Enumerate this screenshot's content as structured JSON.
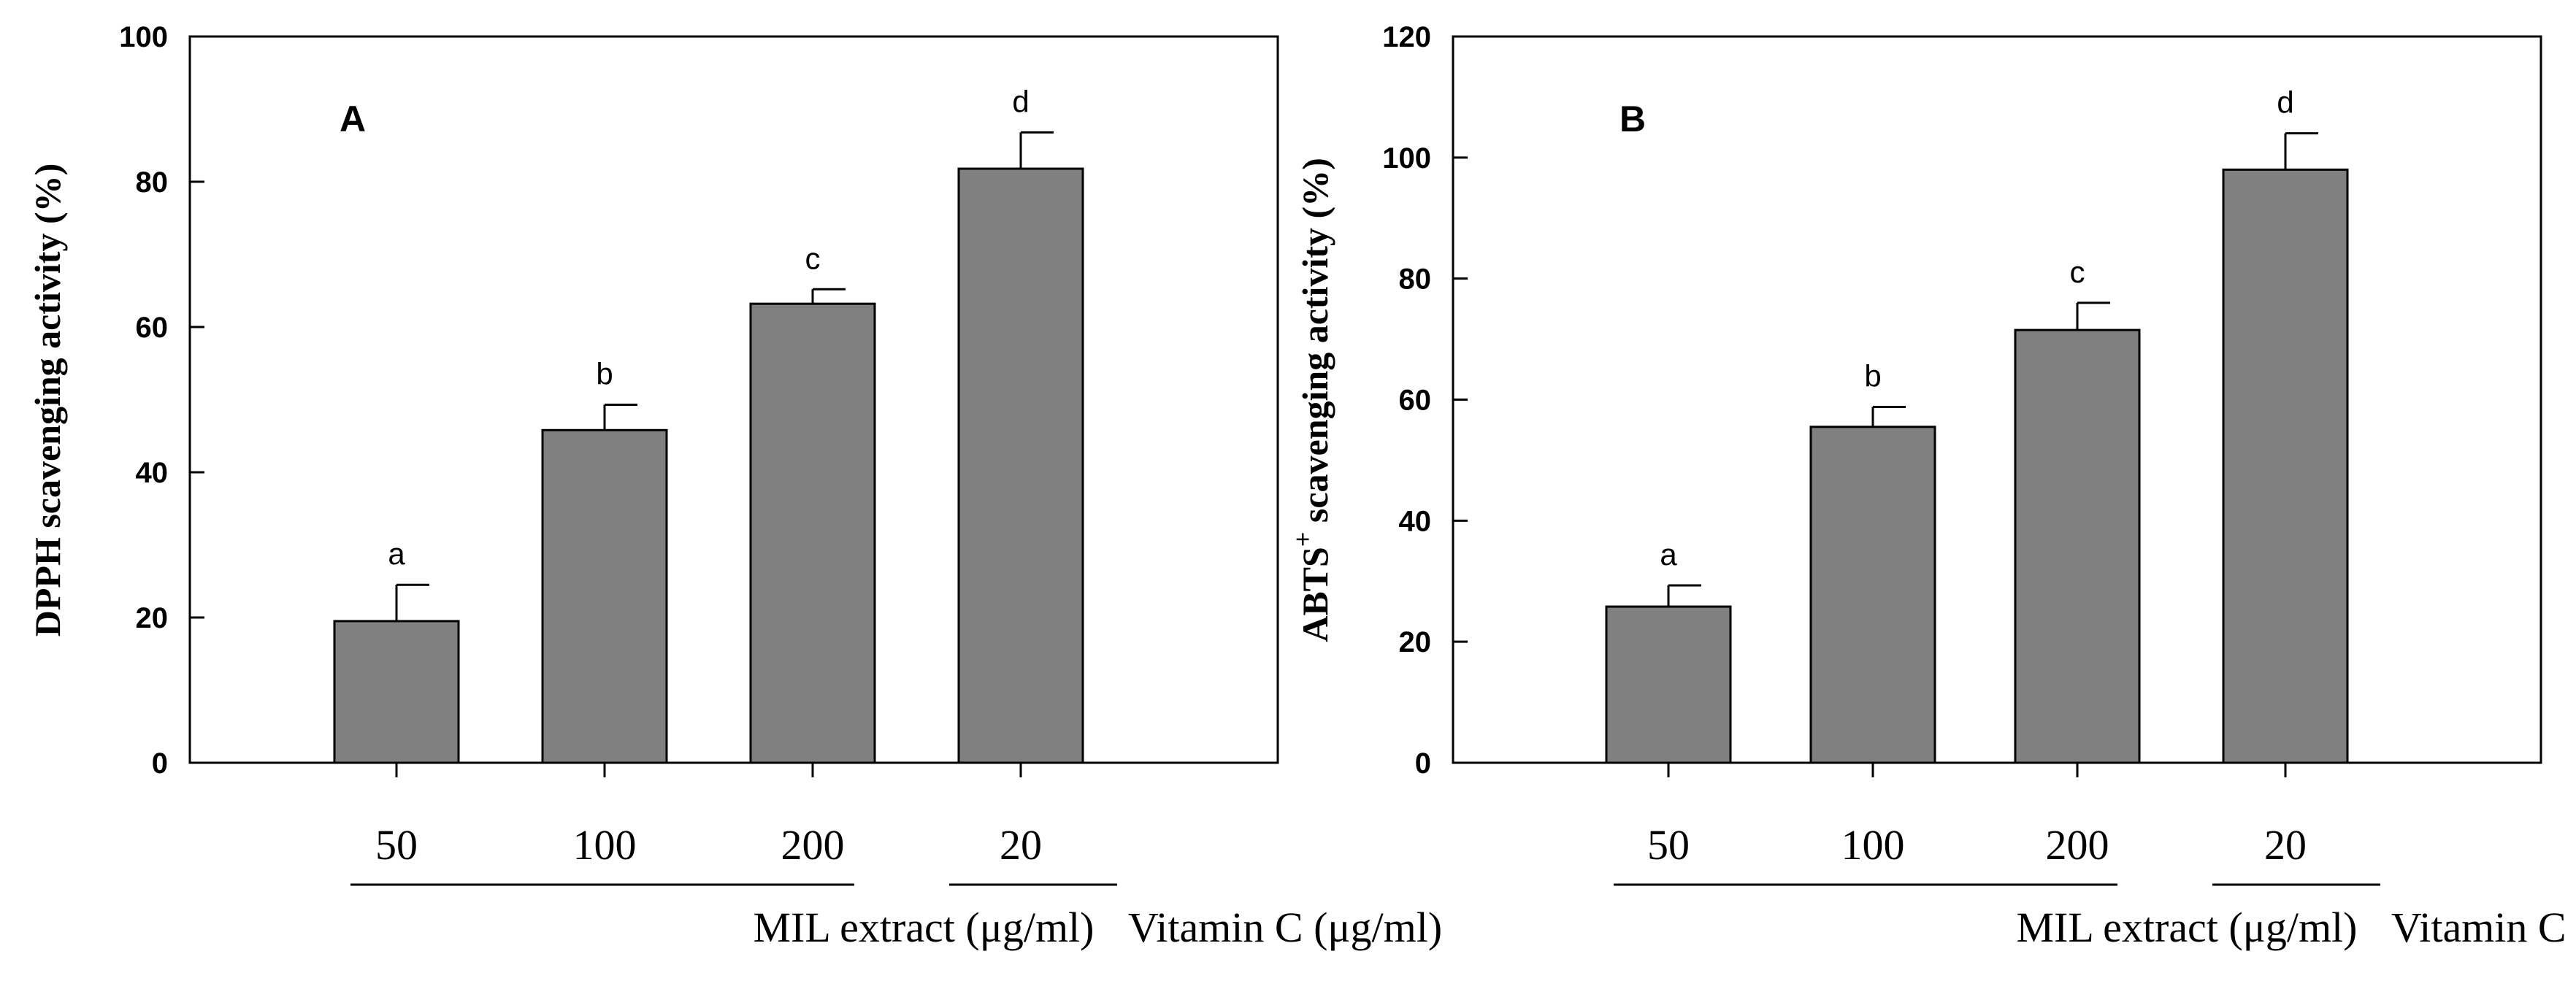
{
  "chart_data": [
    {
      "type": "bar",
      "panel_label": "A",
      "ylabel": "DPPH scavenging activity (%)",
      "ylim": [
        0,
        100
      ],
      "yticks": [
        0,
        20,
        40,
        60,
        80,
        100
      ],
      "categories": [
        "50",
        "100",
        "200",
        "20"
      ],
      "values": [
        19.5,
        45.8,
        63.2,
        81.8
      ],
      "errors": [
        5.0,
        3.5,
        2.0,
        5.0
      ],
      "significance": [
        "a",
        "b",
        "c",
        "d"
      ],
      "groups": [
        {
          "label": "MIL extract (μg/ml)",
          "span": [
            0,
            2
          ]
        },
        {
          "label": "Vitamin C (μg/ml)",
          "span": [
            3,
            3
          ]
        }
      ]
    },
    {
      "type": "bar",
      "panel_label": "B",
      "ylabel_main": "ABTS",
      "ylabel_sup": "+",
      "ylabel_rest": " scavenging activity (%)",
      "ylim": [
        0,
        120
      ],
      "yticks": [
        0,
        20,
        40,
        60,
        80,
        100,
        120
      ],
      "categories": [
        "50",
        "100",
        "200",
        "20"
      ],
      "values": [
        25.8,
        55.5,
        71.5,
        98.0
      ],
      "errors": [
        3.5,
        3.3,
        4.5,
        6.0
      ],
      "significance": [
        "a",
        "b",
        "c",
        "d"
      ],
      "groups": [
        {
          "label": "MIL extract (μg/ml)",
          "span": [
            0,
            2
          ]
        },
        {
          "label": "Vitamin C (μg/ml)",
          "span": [
            3,
            3
          ]
        }
      ]
    }
  ]
}
